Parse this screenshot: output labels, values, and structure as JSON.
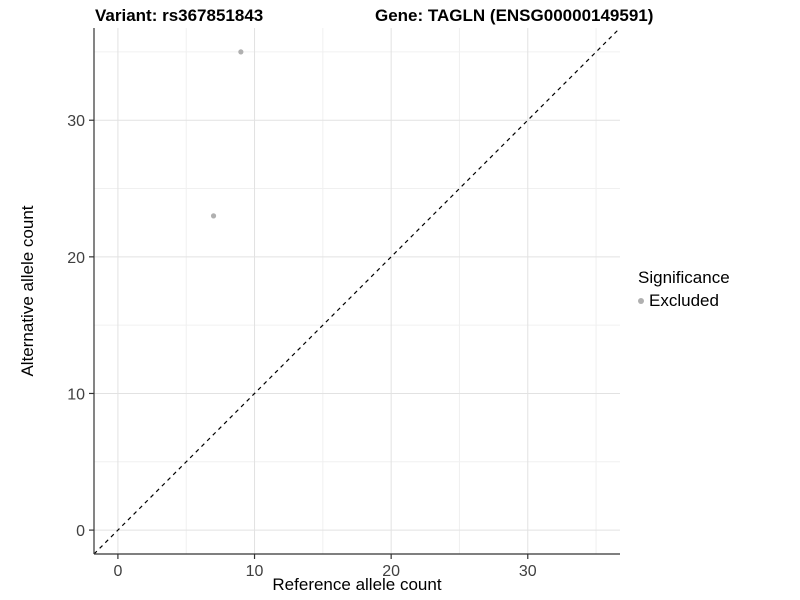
{
  "titles": {
    "variant": "Variant: rs367851843",
    "gene": "Gene: TAGLN (ENSG00000149591)"
  },
  "legend": {
    "title": "Significance",
    "items": [
      {
        "label": "Excluded",
        "color": "#b0b0b0"
      }
    ]
  },
  "colors": {
    "background": "#ffffff",
    "grid_major": "#e2e2e2",
    "grid_minor": "#f0f0f0",
    "axis_line": "#333333",
    "tick_label": "#404040",
    "point": "#b0b0b0",
    "reference_line": "#000000"
  },
  "chart_data": {
    "type": "scatter",
    "title": "",
    "xlabel": "Reference allele count",
    "ylabel": "Alternative allele count",
    "xlim": [
      -1.75,
      36.75
    ],
    "ylim": [
      -1.75,
      36.75
    ],
    "x_ticks": [
      0,
      10,
      20,
      30
    ],
    "y_ticks": [
      0,
      10,
      20,
      30
    ],
    "x_minor_ticks": [
      5,
      15,
      25,
      35
    ],
    "y_minor_ticks": [
      5,
      15,
      25,
      35
    ],
    "grid": true,
    "legend_position": "right",
    "series": [
      {
        "name": "Excluded",
        "color": "#b0b0b0",
        "points": [
          {
            "x": 9,
            "y": 35
          },
          {
            "x": 7,
            "y": 23
          }
        ]
      }
    ],
    "reference_line": {
      "type": "identity",
      "style": "dashed",
      "color": "#000000"
    }
  }
}
